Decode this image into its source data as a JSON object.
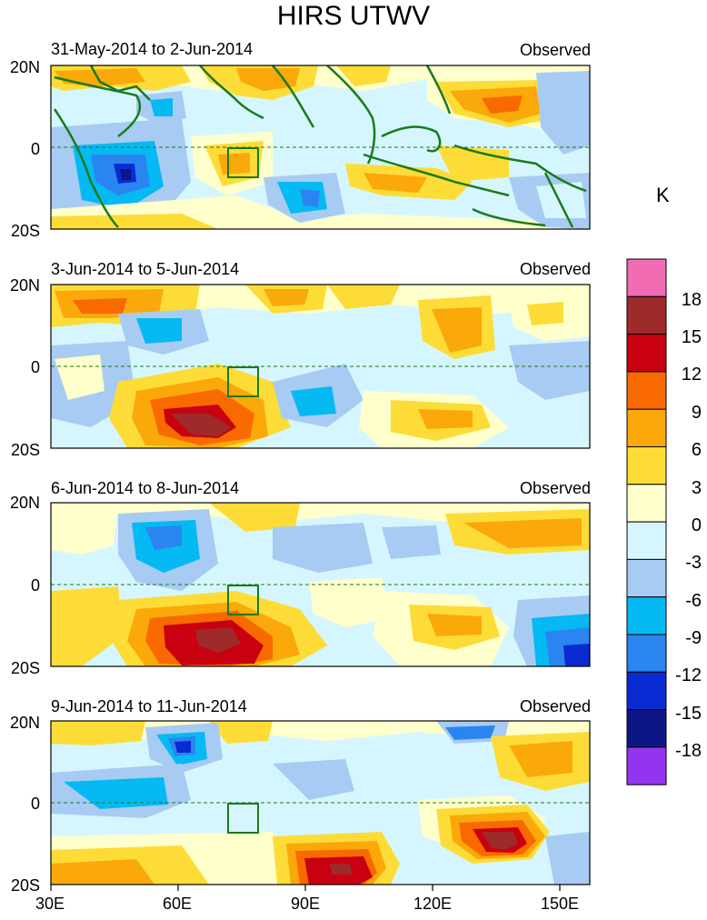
{
  "figure": {
    "title": "HIRS UTWV",
    "unit": "K",
    "panels": [
      {
        "date_range": "31-May-2014 to 2-Jun-2014",
        "label": "Observed"
      },
      {
        "date_range": "3-Jun-2014 to 5-Jun-2014",
        "label": "Observed"
      },
      {
        "date_range": "6-Jun-2014 to 8-Jun-2014",
        "label": "Observed"
      },
      {
        "date_range": "9-Jun-2014 to 11-Jun-2014",
        "label": "Observed"
      }
    ],
    "lat_ticks": [
      "20N",
      "0",
      "20S"
    ],
    "lon_ticks": [
      "30E",
      "60E",
      "90E",
      "120E",
      "150E"
    ]
  },
  "colorbar": {
    "labels": [
      "18",
      "15",
      "12",
      "9",
      "6",
      "3",
      "0",
      "-3",
      "-6",
      "-9",
      "-12",
      "-15",
      "-18"
    ],
    "colors": [
      "#f26cb4",
      "#9e2a2a",
      "#c8000f",
      "#f86a00",
      "#fba80a",
      "#fddc37",
      "#ffffcc",
      "#d6f6ff",
      "#a7cbf3",
      "#05b9f2",
      "#2b85f0",
      "#0a2bd2",
      "#0c1684",
      "#9434f0"
    ]
  }
}
